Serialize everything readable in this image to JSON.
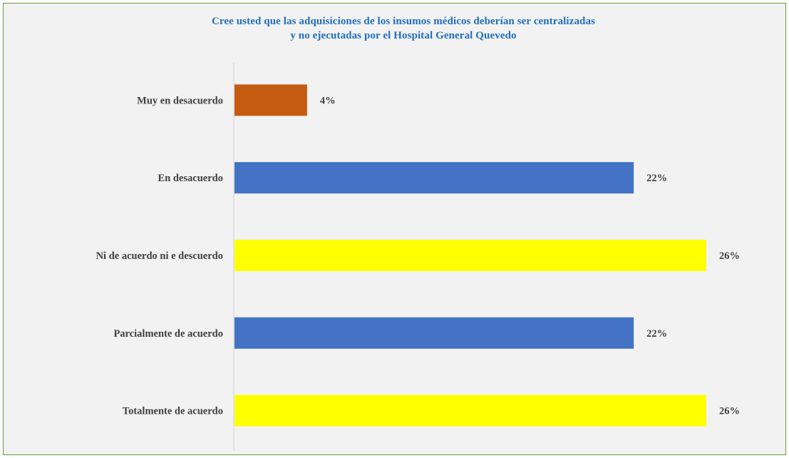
{
  "chart_data": {
    "type": "bar",
    "orientation": "horizontal",
    "title_lines": [
      "Cree usted que las adquisiciones de los insumos médicos deberían ser centralizadas",
      "y no ejecutadas por el Hospital General Quevedo"
    ],
    "categories": [
      "Muy en desacuerdo",
      "En desacuerdo",
      "Ni de acuerdo ni e descuerdo",
      "Parcialmente de acuerdo",
      "Totalmente de acuerdo"
    ],
    "values": [
      4,
      22,
      26,
      22,
      26
    ],
    "value_labels": [
      "4%",
      "22%",
      "26%",
      "22%",
      "26%"
    ],
    "bar_colors": [
      "#c55a11",
      "#4472c4",
      "#ffff00",
      "#4472c4",
      "#ffff00"
    ],
    "unit": "%",
    "xlim": [
      0,
      26
    ],
    "grid": false,
    "legend": "none",
    "colors": {
      "title": "#1f6fbf",
      "border": "#6a9a3a",
      "background": "#f2f2f2",
      "axis": "#d0d0d0",
      "text": "#404040"
    }
  }
}
